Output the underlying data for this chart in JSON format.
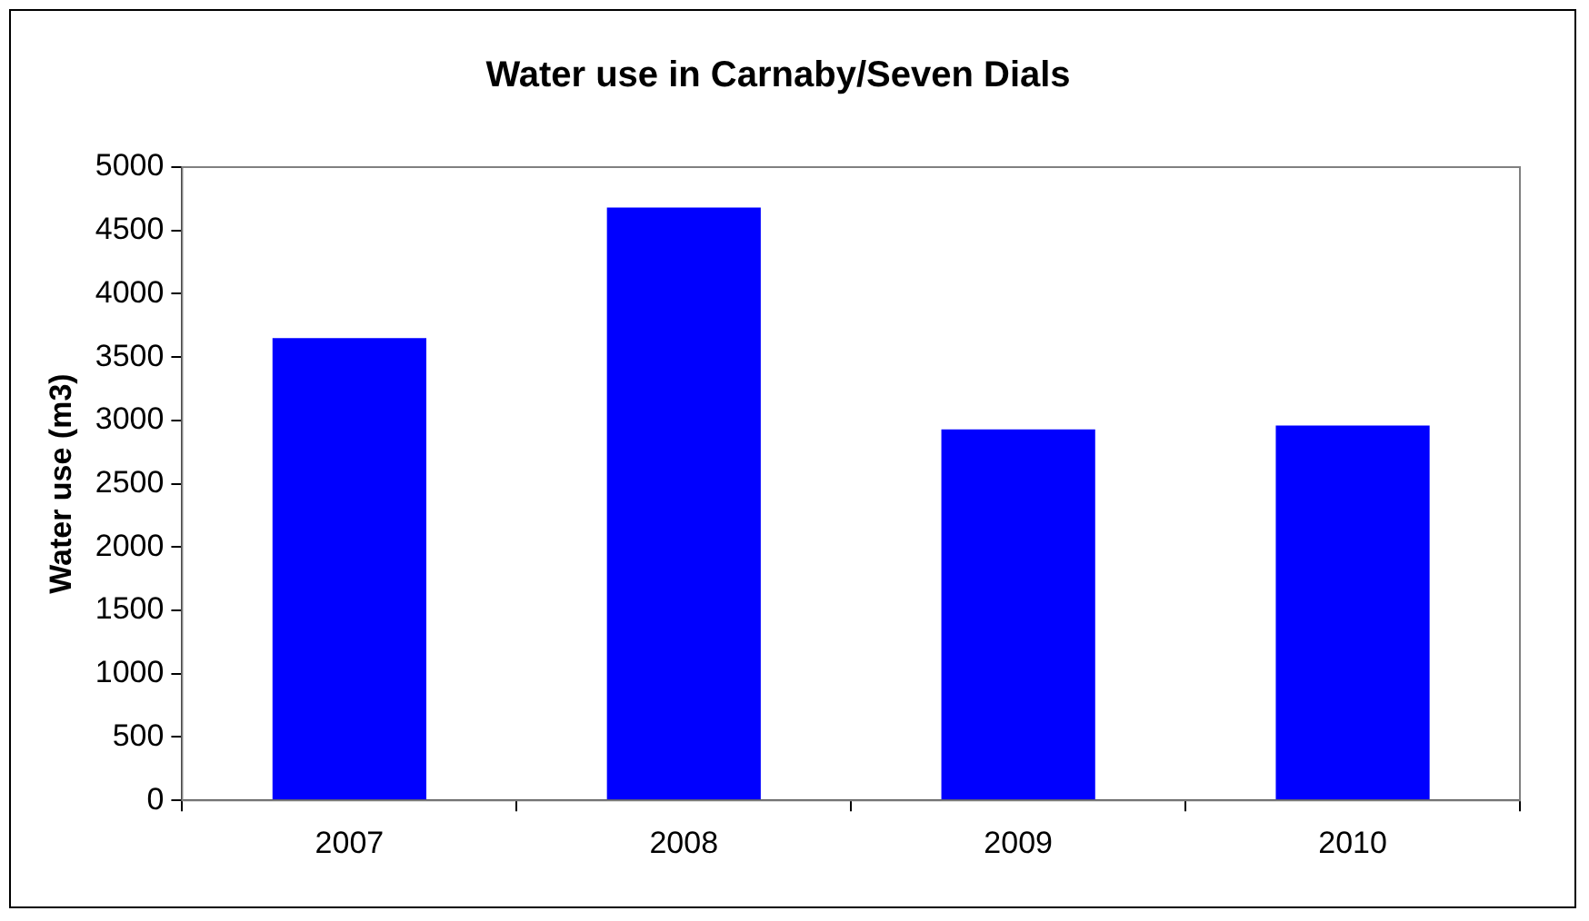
{
  "chart_data": {
    "type": "bar",
    "title": "Water use in Carnaby/Seven Dials",
    "ylabel": "Water use (m3)",
    "categories": [
      "2007",
      "2008",
      "2009",
      "2010"
    ],
    "values": [
      3650,
      4680,
      2930,
      2960
    ],
    "color": "#0000ff",
    "ylim": [
      0,
      5000
    ],
    "yticks": [
      0,
      500,
      1000,
      1500,
      2000,
      2500,
      3000,
      3500,
      4000,
      4500,
      5000
    ],
    "legend": false
  }
}
